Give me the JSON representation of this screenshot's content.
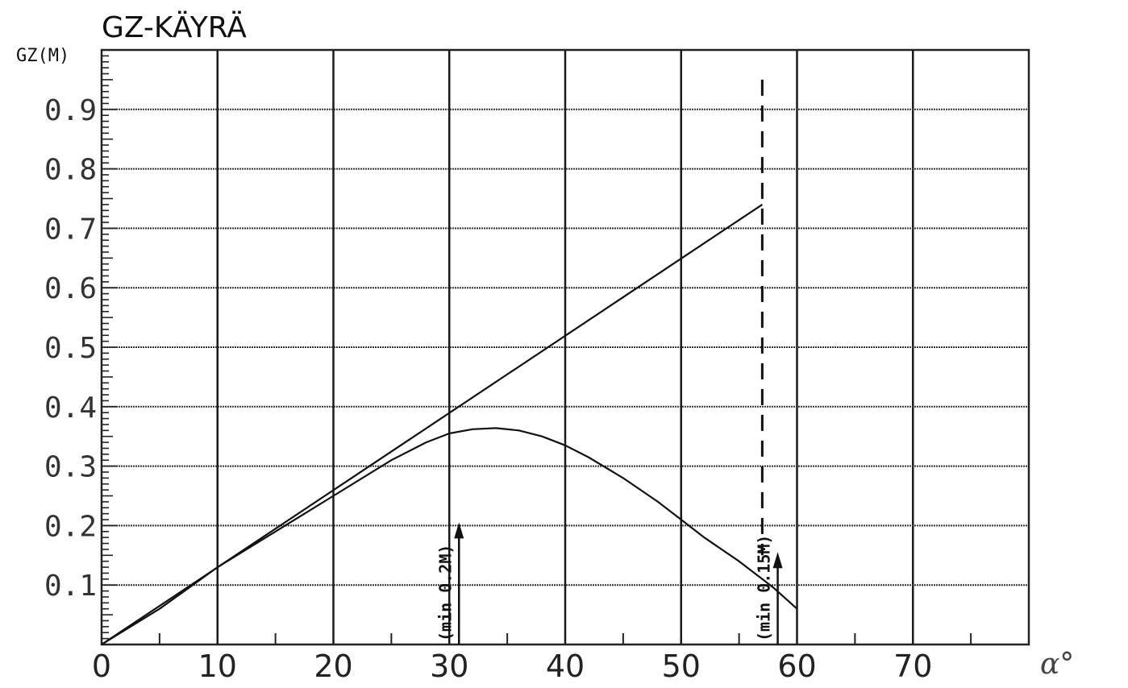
{
  "chart_data": {
    "type": "line",
    "title": "GZ-KÄYRÄ",
    "ylabel": "GZ(M)",
    "xlabel": "α°",
    "xlim": [
      0,
      80
    ],
    "ylim": [
      0,
      1.0
    ],
    "x_ticks": [
      0,
      10,
      20,
      30,
      40,
      50,
      60,
      70
    ],
    "x_tick_labels": [
      "0",
      "10",
      "20",
      "30",
      "40",
      "50",
      "60",
      "70"
    ],
    "y_ticks": [
      0.1,
      0.2,
      0.3,
      0.4,
      0.5,
      0.6,
      0.7,
      0.8,
      0.9
    ],
    "y_tick_labels": [
      "0.1",
      "0.2",
      "0.3",
      "0.4",
      "0.5",
      "0.6",
      "0.7",
      "0.8",
      "0.9"
    ],
    "grid": true,
    "series": [
      {
        "role": "tangent",
        "x": [
          0,
          57
        ],
        "y": [
          0,
          0.74
        ]
      },
      {
        "role": "gz-curve",
        "x": [
          0,
          5,
          10,
          15,
          20,
          25,
          28,
          30,
          32,
          34,
          36,
          38,
          40,
          42,
          45,
          48,
          50,
          52,
          55,
          57,
          58,
          60
        ],
        "y": [
          0,
          0.06,
          0.13,
          0.19,
          0.25,
          0.31,
          0.34,
          0.355,
          0.362,
          0.364,
          0.36,
          0.35,
          0.335,
          0.315,
          0.28,
          0.24,
          0.21,
          0.18,
          0.14,
          0.11,
          0.095,
          0.06
        ]
      }
    ],
    "annotations": [
      {
        "text": "(min 0.2M)",
        "x": 30,
        "y_from": 0,
        "y_to": 0.2
      },
      {
        "text": "(min 0.15M)",
        "x": 57.5,
        "y_from": 0,
        "y_to": 0.15
      }
    ],
    "reference_lines": [
      {
        "style": "dashed",
        "x": 57,
        "y_from": 0.15,
        "y_to": 0.95
      }
    ]
  }
}
